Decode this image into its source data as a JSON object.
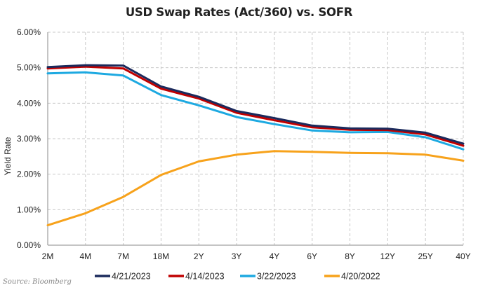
{
  "chart_data": {
    "type": "line",
    "title": "USD Swap Rates (Act/360) vs. SOFR",
    "xlabel": "",
    "ylabel": "Yield Rate",
    "categories": [
      "2M",
      "4M",
      "7M",
      "18M",
      "2Y",
      "3Y",
      "4Y",
      "6Y",
      "8Y",
      "12Y",
      "25Y",
      "40Y"
    ],
    "ylim": [
      0,
      6
    ],
    "yticks": [
      "0.00%",
      "1.00%",
      "2.00%",
      "3.00%",
      "4.00%",
      "5.00%",
      "6.00%"
    ],
    "grid": true,
    "legend_position": "bottom",
    "series": [
      {
        "name": "4/21/2023",
        "color": "#1b2a5c",
        "values": [
          5.02,
          5.07,
          5.06,
          4.47,
          4.18,
          3.78,
          3.58,
          3.37,
          3.29,
          3.28,
          3.17,
          2.86
        ]
      },
      {
        "name": "4/14/2023",
        "color": "#c00000",
        "values": [
          4.98,
          5.03,
          4.98,
          4.41,
          4.13,
          3.73,
          3.52,
          3.32,
          3.25,
          3.24,
          3.12,
          2.8
        ]
      },
      {
        "name": "3/22/2023",
        "color": "#1da9e1",
        "values": [
          4.84,
          4.87,
          4.78,
          4.23,
          3.94,
          3.61,
          3.41,
          3.23,
          3.18,
          3.19,
          3.04,
          2.7
        ]
      },
      {
        "name": "4/20/2022",
        "color": "#f7a21b",
        "values": [
          0.56,
          0.9,
          1.36,
          1.98,
          2.36,
          2.55,
          2.65,
          2.63,
          2.6,
          2.59,
          2.55,
          2.38
        ]
      }
    ]
  },
  "source": "Source: Bloomberg"
}
